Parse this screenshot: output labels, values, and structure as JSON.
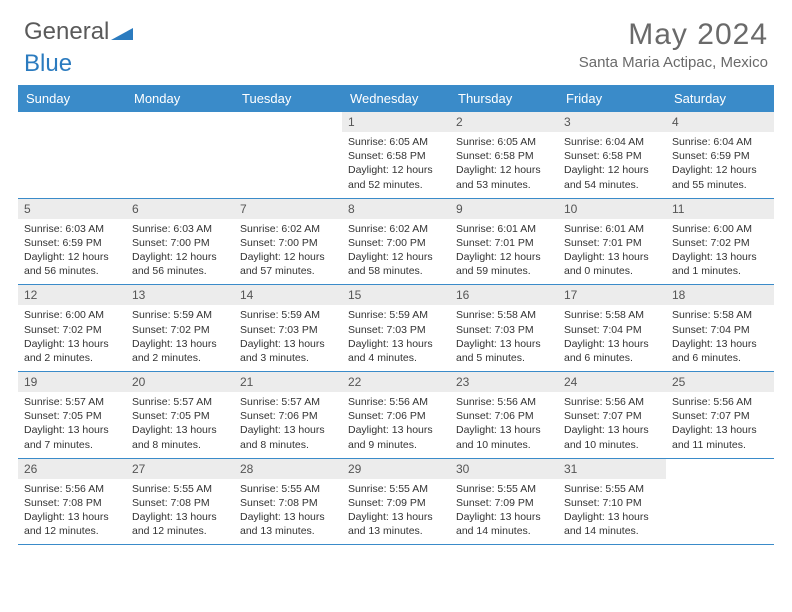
{
  "logo": {
    "text1": "General",
    "text2": "Blue"
  },
  "title": "May 2024",
  "location": "Santa Maria Actipac, Mexico",
  "accent_color": "#3a8bc9",
  "header_bg": "#ececec",
  "day_names": [
    "Sunday",
    "Monday",
    "Tuesday",
    "Wednesday",
    "Thursday",
    "Friday",
    "Saturday"
  ],
  "weeks": [
    [
      null,
      null,
      null,
      {
        "n": "1",
        "sr": "6:05 AM",
        "ss": "6:58 PM",
        "dh": "12",
        "dm": "52"
      },
      {
        "n": "2",
        "sr": "6:05 AM",
        "ss": "6:58 PM",
        "dh": "12",
        "dm": "53"
      },
      {
        "n": "3",
        "sr": "6:04 AM",
        "ss": "6:58 PM",
        "dh": "12",
        "dm": "54"
      },
      {
        "n": "4",
        "sr": "6:04 AM",
        "ss": "6:59 PM",
        "dh": "12",
        "dm": "55"
      }
    ],
    [
      {
        "n": "5",
        "sr": "6:03 AM",
        "ss": "6:59 PM",
        "dh": "12",
        "dm": "56"
      },
      {
        "n": "6",
        "sr": "6:03 AM",
        "ss": "7:00 PM",
        "dh": "12",
        "dm": "56"
      },
      {
        "n": "7",
        "sr": "6:02 AM",
        "ss": "7:00 PM",
        "dh": "12",
        "dm": "57"
      },
      {
        "n": "8",
        "sr": "6:02 AM",
        "ss": "7:00 PM",
        "dh": "12",
        "dm": "58"
      },
      {
        "n": "9",
        "sr": "6:01 AM",
        "ss": "7:01 PM",
        "dh": "12",
        "dm": "59"
      },
      {
        "n": "10",
        "sr": "6:01 AM",
        "ss": "7:01 PM",
        "dh": "13",
        "dm": "0"
      },
      {
        "n": "11",
        "sr": "6:00 AM",
        "ss": "7:02 PM",
        "dh": "13",
        "dm": "1"
      }
    ],
    [
      {
        "n": "12",
        "sr": "6:00 AM",
        "ss": "7:02 PM",
        "dh": "13",
        "dm": "2"
      },
      {
        "n": "13",
        "sr": "5:59 AM",
        "ss": "7:02 PM",
        "dh": "13",
        "dm": "2"
      },
      {
        "n": "14",
        "sr": "5:59 AM",
        "ss": "7:03 PM",
        "dh": "13",
        "dm": "3"
      },
      {
        "n": "15",
        "sr": "5:59 AM",
        "ss": "7:03 PM",
        "dh": "13",
        "dm": "4"
      },
      {
        "n": "16",
        "sr": "5:58 AM",
        "ss": "7:03 PM",
        "dh": "13",
        "dm": "5"
      },
      {
        "n": "17",
        "sr": "5:58 AM",
        "ss": "7:04 PM",
        "dh": "13",
        "dm": "6"
      },
      {
        "n": "18",
        "sr": "5:58 AM",
        "ss": "7:04 PM",
        "dh": "13",
        "dm": "6"
      }
    ],
    [
      {
        "n": "19",
        "sr": "5:57 AM",
        "ss": "7:05 PM",
        "dh": "13",
        "dm": "7"
      },
      {
        "n": "20",
        "sr": "5:57 AM",
        "ss": "7:05 PM",
        "dh": "13",
        "dm": "8"
      },
      {
        "n": "21",
        "sr": "5:57 AM",
        "ss": "7:06 PM",
        "dh": "13",
        "dm": "8"
      },
      {
        "n": "22",
        "sr": "5:56 AM",
        "ss": "7:06 PM",
        "dh": "13",
        "dm": "9"
      },
      {
        "n": "23",
        "sr": "5:56 AM",
        "ss": "7:06 PM",
        "dh": "13",
        "dm": "10"
      },
      {
        "n": "24",
        "sr": "5:56 AM",
        "ss": "7:07 PM",
        "dh": "13",
        "dm": "10"
      },
      {
        "n": "25",
        "sr": "5:56 AM",
        "ss": "7:07 PM",
        "dh": "13",
        "dm": "11"
      }
    ],
    [
      {
        "n": "26",
        "sr": "5:56 AM",
        "ss": "7:08 PM",
        "dh": "13",
        "dm": "12"
      },
      {
        "n": "27",
        "sr": "5:55 AM",
        "ss": "7:08 PM",
        "dh": "13",
        "dm": "12"
      },
      {
        "n": "28",
        "sr": "5:55 AM",
        "ss": "7:08 PM",
        "dh": "13",
        "dm": "13"
      },
      {
        "n": "29",
        "sr": "5:55 AM",
        "ss": "7:09 PM",
        "dh": "13",
        "dm": "13"
      },
      {
        "n": "30",
        "sr": "5:55 AM",
        "ss": "7:09 PM",
        "dh": "13",
        "dm": "14"
      },
      {
        "n": "31",
        "sr": "5:55 AM",
        "ss": "7:10 PM",
        "dh": "13",
        "dm": "14"
      },
      null
    ]
  ]
}
